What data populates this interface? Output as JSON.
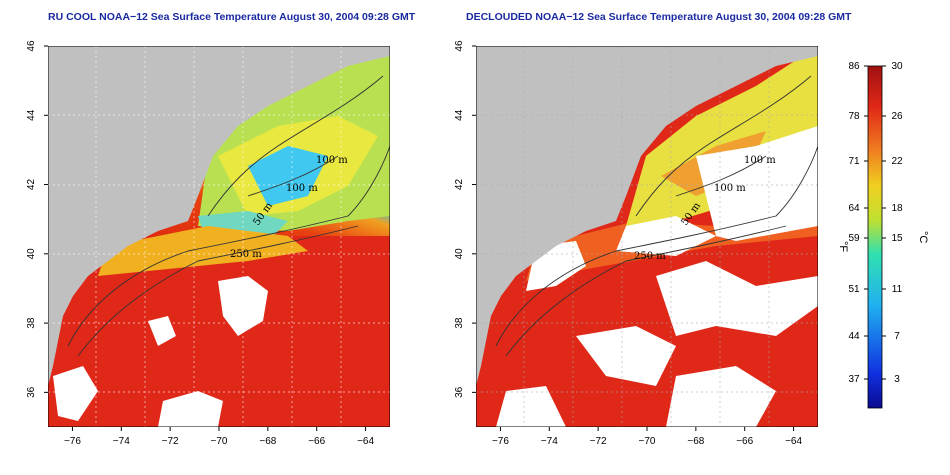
{
  "panels": [
    {
      "title": "RU COOL NOAA−12 Sea Surface Temperature August 30, 2004 09:28 GMT"
    },
    {
      "title": "DECLOUDED NOAA−12 Sea Surface Temperature August 30, 2004 09:28 GMT"
    }
  ],
  "axes": {
    "lon_ticks": [
      "−76",
      "−74",
      "−72",
      "−70",
      "−68",
      "−66",
      "−64"
    ],
    "lat_ticks": [
      "46",
      "44",
      "42",
      "40",
      "38",
      "36"
    ],
    "lon_range": [
      -77,
      -63
    ],
    "lat_range": [
      35,
      46
    ]
  },
  "contours": {
    "labels": [
      "100 m",
      "100 m",
      "50 m",
      "250 m",
      "250 m",
      "50 m"
    ]
  },
  "colorbar": {
    "fahrenheit_ticks": [
      "86",
      "78",
      "71",
      "64",
      "59",
      "51",
      "44",
      "37"
    ],
    "celsius_ticks": [
      "30",
      "26",
      "22",
      "18",
      "15",
      "11",
      "7",
      "3"
    ],
    "fahrenheit_unit": "°F",
    "celsius_unit": "°C",
    "range_c": [
      0,
      30
    ]
  },
  "colors": {
    "land": "#c0c0c0",
    "cloud": "#ffffff",
    "warm": "#e02010",
    "title": "#1a2aa0"
  }
}
